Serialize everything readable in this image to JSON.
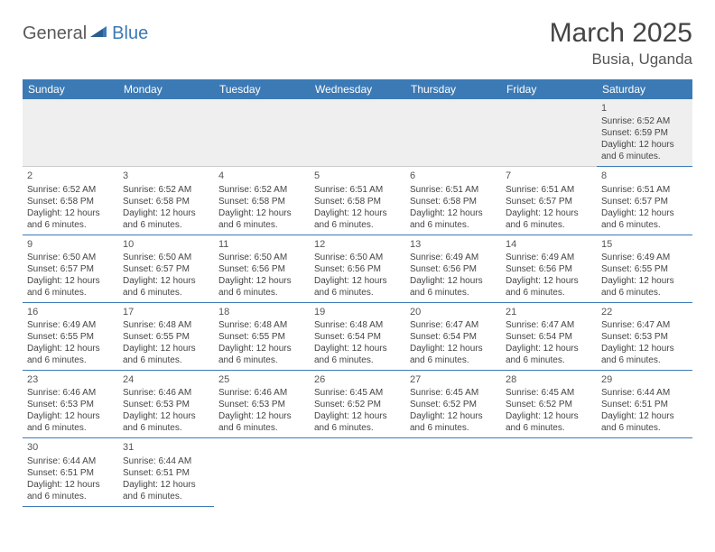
{
  "logo": {
    "part1": "General",
    "part2": "Blue"
  },
  "title": "March 2025",
  "location": "Busia, Uganda",
  "header_bg": "#3c7ab5",
  "header_fg": "#ffffff",
  "row_border": "#3c7ab5",
  "weekdays": [
    "Sunday",
    "Monday",
    "Tuesday",
    "Wednesday",
    "Thursday",
    "Friday",
    "Saturday"
  ],
  "weeks": [
    [
      null,
      null,
      null,
      null,
      null,
      null,
      {
        "n": "1",
        "sr": "6:52 AM",
        "ss": "6:59 PM",
        "dl": "12 hours and 6 minutes."
      }
    ],
    [
      {
        "n": "2",
        "sr": "6:52 AM",
        "ss": "6:58 PM",
        "dl": "12 hours and 6 minutes."
      },
      {
        "n": "3",
        "sr": "6:52 AM",
        "ss": "6:58 PM",
        "dl": "12 hours and 6 minutes."
      },
      {
        "n": "4",
        "sr": "6:52 AM",
        "ss": "6:58 PM",
        "dl": "12 hours and 6 minutes."
      },
      {
        "n": "5",
        "sr": "6:51 AM",
        "ss": "6:58 PM",
        "dl": "12 hours and 6 minutes."
      },
      {
        "n": "6",
        "sr": "6:51 AM",
        "ss": "6:58 PM",
        "dl": "12 hours and 6 minutes."
      },
      {
        "n": "7",
        "sr": "6:51 AM",
        "ss": "6:57 PM",
        "dl": "12 hours and 6 minutes."
      },
      {
        "n": "8",
        "sr": "6:51 AM",
        "ss": "6:57 PM",
        "dl": "12 hours and 6 minutes."
      }
    ],
    [
      {
        "n": "9",
        "sr": "6:50 AM",
        "ss": "6:57 PM",
        "dl": "12 hours and 6 minutes."
      },
      {
        "n": "10",
        "sr": "6:50 AM",
        "ss": "6:57 PM",
        "dl": "12 hours and 6 minutes."
      },
      {
        "n": "11",
        "sr": "6:50 AM",
        "ss": "6:56 PM",
        "dl": "12 hours and 6 minutes."
      },
      {
        "n": "12",
        "sr": "6:50 AM",
        "ss": "6:56 PM",
        "dl": "12 hours and 6 minutes."
      },
      {
        "n": "13",
        "sr": "6:49 AM",
        "ss": "6:56 PM",
        "dl": "12 hours and 6 minutes."
      },
      {
        "n": "14",
        "sr": "6:49 AM",
        "ss": "6:56 PM",
        "dl": "12 hours and 6 minutes."
      },
      {
        "n": "15",
        "sr": "6:49 AM",
        "ss": "6:55 PM",
        "dl": "12 hours and 6 minutes."
      }
    ],
    [
      {
        "n": "16",
        "sr": "6:49 AM",
        "ss": "6:55 PM",
        "dl": "12 hours and 6 minutes."
      },
      {
        "n": "17",
        "sr": "6:48 AM",
        "ss": "6:55 PM",
        "dl": "12 hours and 6 minutes."
      },
      {
        "n": "18",
        "sr": "6:48 AM",
        "ss": "6:55 PM",
        "dl": "12 hours and 6 minutes."
      },
      {
        "n": "19",
        "sr": "6:48 AM",
        "ss": "6:54 PM",
        "dl": "12 hours and 6 minutes."
      },
      {
        "n": "20",
        "sr": "6:47 AM",
        "ss": "6:54 PM",
        "dl": "12 hours and 6 minutes."
      },
      {
        "n": "21",
        "sr": "6:47 AM",
        "ss": "6:54 PM",
        "dl": "12 hours and 6 minutes."
      },
      {
        "n": "22",
        "sr": "6:47 AM",
        "ss": "6:53 PM",
        "dl": "12 hours and 6 minutes."
      }
    ],
    [
      {
        "n": "23",
        "sr": "6:46 AM",
        "ss": "6:53 PM",
        "dl": "12 hours and 6 minutes."
      },
      {
        "n": "24",
        "sr": "6:46 AM",
        "ss": "6:53 PM",
        "dl": "12 hours and 6 minutes."
      },
      {
        "n": "25",
        "sr": "6:46 AM",
        "ss": "6:53 PM",
        "dl": "12 hours and 6 minutes."
      },
      {
        "n": "26",
        "sr": "6:45 AM",
        "ss": "6:52 PM",
        "dl": "12 hours and 6 minutes."
      },
      {
        "n": "27",
        "sr": "6:45 AM",
        "ss": "6:52 PM",
        "dl": "12 hours and 6 minutes."
      },
      {
        "n": "28",
        "sr": "6:45 AM",
        "ss": "6:52 PM",
        "dl": "12 hours and 6 minutes."
      },
      {
        "n": "29",
        "sr": "6:44 AM",
        "ss": "6:51 PM",
        "dl": "12 hours and 6 minutes."
      }
    ],
    [
      {
        "n": "30",
        "sr": "6:44 AM",
        "ss": "6:51 PM",
        "dl": "12 hours and 6 minutes."
      },
      {
        "n": "31",
        "sr": "6:44 AM",
        "ss": "6:51 PM",
        "dl": "12 hours and 6 minutes."
      },
      null,
      null,
      null,
      null,
      null
    ]
  ],
  "labels": {
    "sunrise": "Sunrise:",
    "sunset": "Sunset:",
    "daylight": "Daylight:"
  }
}
